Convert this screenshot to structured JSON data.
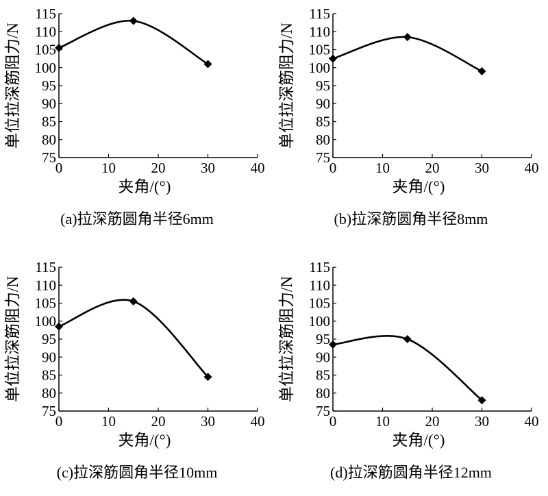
{
  "chart_data": [
    {
      "type": "line",
      "caption": "(a)拉深筋圆角半径6mm",
      "xlabel": "夹角/(°)",
      "ylabel": "单位拉深筋阻力/N",
      "xlim": [
        0,
        40
      ],
      "ylim": [
        75,
        115
      ],
      "xticks": [
        0,
        10,
        20,
        30,
        40
      ],
      "yticks": [
        75,
        80,
        85,
        90,
        95,
        100,
        105,
        110,
        115
      ],
      "x": [
        0,
        15,
        30
      ],
      "values": [
        105.5,
        113,
        101
      ],
      "grid": false
    },
    {
      "type": "line",
      "caption": "(b)拉深筋圆角半径8mm",
      "xlabel": "夹角/(°)",
      "ylabel": "单位拉深筋阻力/N",
      "xlim": [
        0,
        40
      ],
      "ylim": [
        75,
        115
      ],
      "xticks": [
        0,
        10,
        20,
        30,
        40
      ],
      "yticks": [
        75,
        80,
        85,
        90,
        95,
        100,
        105,
        110,
        115
      ],
      "x": [
        0,
        15,
        30
      ],
      "values": [
        102.5,
        108.5,
        99
      ],
      "grid": false
    },
    {
      "type": "line",
      "caption": "(c)拉深筋圆角半径10mm",
      "xlabel": "夹角/(°)",
      "ylabel": "单位拉深筋阻力/N",
      "xlim": [
        0,
        40
      ],
      "ylim": [
        75,
        115
      ],
      "xticks": [
        0,
        10,
        20,
        30,
        40
      ],
      "yticks": [
        75,
        80,
        85,
        90,
        95,
        100,
        105,
        110,
        115
      ],
      "x": [
        0,
        15,
        30
      ],
      "values": [
        98.5,
        105.5,
        84.5
      ],
      "grid": false
    },
    {
      "type": "line",
      "caption": "(d)拉深筋圆角半径12mm",
      "xlabel": "夹角/(°)",
      "ylabel": "单位拉深筋阻力/N",
      "xlim": [
        0,
        40
      ],
      "ylim": [
        75,
        115
      ],
      "xticks": [
        0,
        10,
        20,
        30,
        40
      ],
      "yticks": [
        75,
        80,
        85,
        90,
        95,
        100,
        105,
        110,
        115
      ],
      "x": [
        0,
        15,
        30
      ],
      "values": [
        93.5,
        95,
        78
      ],
      "grid": false
    }
  ]
}
